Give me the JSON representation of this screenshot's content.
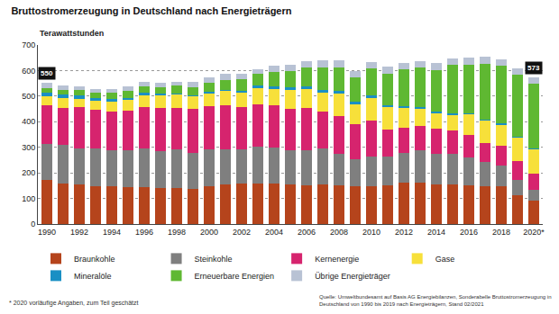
{
  "chart_data": {
    "type": "bar",
    "title": "Bruttostromerzeugung in Deutschland nach Energieträgern",
    "y_label": "Terawattstunden",
    "categories": [
      "1990",
      null,
      "1992",
      null,
      "1994",
      null,
      "1996",
      null,
      "1998",
      null,
      "2000",
      null,
      "2002",
      null,
      "2004",
      null,
      "2006",
      null,
      "2008",
      null,
      "2010",
      null,
      "2012",
      null,
      "2014",
      null,
      "2016",
      null,
      "2018",
      null,
      "2020*"
    ],
    "series": [
      {
        "name": "Braunkohle",
        "color": "#b5441c",
        "values": [
          171,
          158,
          155,
          148,
          146,
          143,
          144,
          142,
          139,
          136,
          148,
          155,
          158,
          158,
          158,
          154,
          151,
          155,
          150,
          146,
          146,
          150,
          161,
          161,
          156,
          155,
          150,
          148,
          146,
          114,
          91
        ]
      },
      {
        "name": "Steinkohle",
        "color": "#7f7f7f",
        "values": [
          141,
          150,
          142,
          147,
          144,
          147,
          153,
          143,
          153,
          143,
          143,
          138,
          135,
          146,
          141,
          134,
          137,
          142,
          124,
          108,
          117,
          113,
          117,
          127,
          119,
          118,
          112,
          93,
          83,
          57,
          43
        ]
      },
      {
        "name": "Kernenergie",
        "color": "#d6246e",
        "values": [
          153,
          147,
          159,
          153,
          151,
          154,
          161,
          170,
          162,
          170,
          170,
          171,
          165,
          165,
          167,
          163,
          167,
          141,
          149,
          135,
          141,
          108,
          99,
          97,
          97,
          92,
          85,
          76,
          76,
          75,
          64
        ]
      },
      {
        "name": "Gase",
        "color": "#f7e03a",
        "values": [
          36,
          36,
          33,
          33,
          36,
          41,
          46,
          48,
          51,
          49,
          49,
          55,
          55,
          62,
          61,
          72,
          73,
          76,
          86,
          79,
          89,
          86,
          76,
          67,
          61,
          62,
          81,
          86,
          83,
          91,
          95
        ]
      },
      {
        "name": "Mineralöle",
        "color": "#1a8fc4",
        "values": [
          11,
          15,
          13,
          12,
          11,
          9,
          9,
          8,
          6,
          6,
          6,
          6,
          9,
          10,
          10,
          12,
          11,
          10,
          10,
          10,
          9,
          7,
          8,
          7,
          6,
          6,
          6,
          6,
          5,
          5,
          4
        ]
      },
      {
        "name": "Erneuerbare Energien",
        "color": "#5fb832",
        "values": [
          20,
          19,
          21,
          22,
          24,
          25,
          24,
          25,
          29,
          30,
          36,
          38,
          45,
          46,
          57,
          62,
          72,
          89,
          93,
          95,
          105,
          124,
          144,
          152,
          162,
          188,
          189,
          216,
          225,
          242,
          251
        ]
      },
      {
        "name": "Übrige Energieträger",
        "color": "#b8c2d4",
        "values": [
          19,
          15,
          14,
          12,
          15,
          18,
          18,
          17,
          17,
          21,
          23,
          24,
          20,
          19,
          24,
          25,
          27,
          26,
          27,
          24,
          26,
          26,
          25,
          27,
          27,
          27,
          27,
          28,
          26,
          25,
          25
        ]
      }
    ],
    "annotations": [
      {
        "category": "1990",
        "text": "550"
      },
      {
        "category": "2020*",
        "text": "573"
      }
    ],
    "footnote": "* 2020 vorläufige Angaben, zum Teil geschätzt",
    "source": [
      "Quelle: Umweltbundesamt auf Basis AG Energiebilanzen, Sonderabelle Bruttostromerzeugung in",
      "Deutschland von 1990 bis 2019 nach Energieträgern, Stand 02/2021"
    ],
    "ylim": [
      0,
      700
    ],
    "yticks": [
      0,
      100,
      200,
      300,
      400,
      500,
      600,
      700
    ],
    "stacked": true,
    "grid": true,
    "legend": "bottom"
  }
}
